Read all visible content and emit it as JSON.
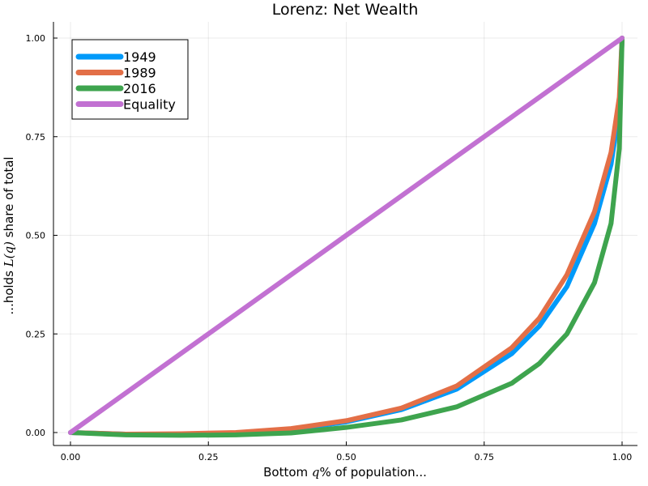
{
  "chart_data": {
    "type": "line",
    "title": "Lorenz: Net Wealth",
    "xlabel": {
      "prefix": "Bottom ",
      "math": "q",
      "suffix": "% of population..."
    },
    "ylabel": {
      "prefix": "...holds ",
      "math": "L(q)",
      "suffix": " share of total"
    },
    "xlim": [
      0,
      1
    ],
    "ylim": [
      0,
      1
    ],
    "xticks": [
      0,
      0.25,
      0.5,
      0.75,
      1
    ],
    "xtick_labels": [
      "0.00",
      "0.25",
      "0.50",
      "0.75",
      "1.00"
    ],
    "yticks": [
      0,
      0.25,
      0.5,
      0.75,
      1
    ],
    "ytick_labels": [
      "0.00",
      "0.25",
      "0.50",
      "0.75",
      "1.00"
    ],
    "grid": true,
    "legend_position": "top-left",
    "x": [
      0,
      0.1,
      0.2,
      0.3,
      0.4,
      0.5,
      0.6,
      0.7,
      0.8,
      0.85,
      0.9,
      0.95,
      0.98,
      0.995,
      1
    ],
    "series": [
      {
        "name": "1949",
        "color": "#009AFA",
        "values": [
          0,
          -0.004,
          -0.004,
          -0.001,
          0.008,
          0.027,
          0.058,
          0.11,
          0.2,
          0.27,
          0.37,
          0.53,
          0.68,
          0.82,
          1
        ]
      },
      {
        "name": "1989",
        "color": "#E36F47",
        "values": [
          0,
          -0.004,
          -0.003,
          0.0,
          0.01,
          0.03,
          0.062,
          0.118,
          0.215,
          0.29,
          0.4,
          0.56,
          0.71,
          0.85,
          1
        ]
      },
      {
        "name": "2016",
        "color": "#3EA44E",
        "values": [
          0,
          -0.006,
          -0.007,
          -0.006,
          -0.001,
          0.013,
          0.032,
          0.065,
          0.125,
          0.175,
          0.25,
          0.38,
          0.53,
          0.72,
          1
        ]
      },
      {
        "name": "Equality",
        "color": "#C271D2",
        "values": [
          0,
          0.1,
          0.2,
          0.3,
          0.4,
          0.5,
          0.6,
          0.7,
          0.8,
          0.85,
          0.9,
          0.95,
          0.98,
          0.995,
          1
        ]
      }
    ]
  }
}
